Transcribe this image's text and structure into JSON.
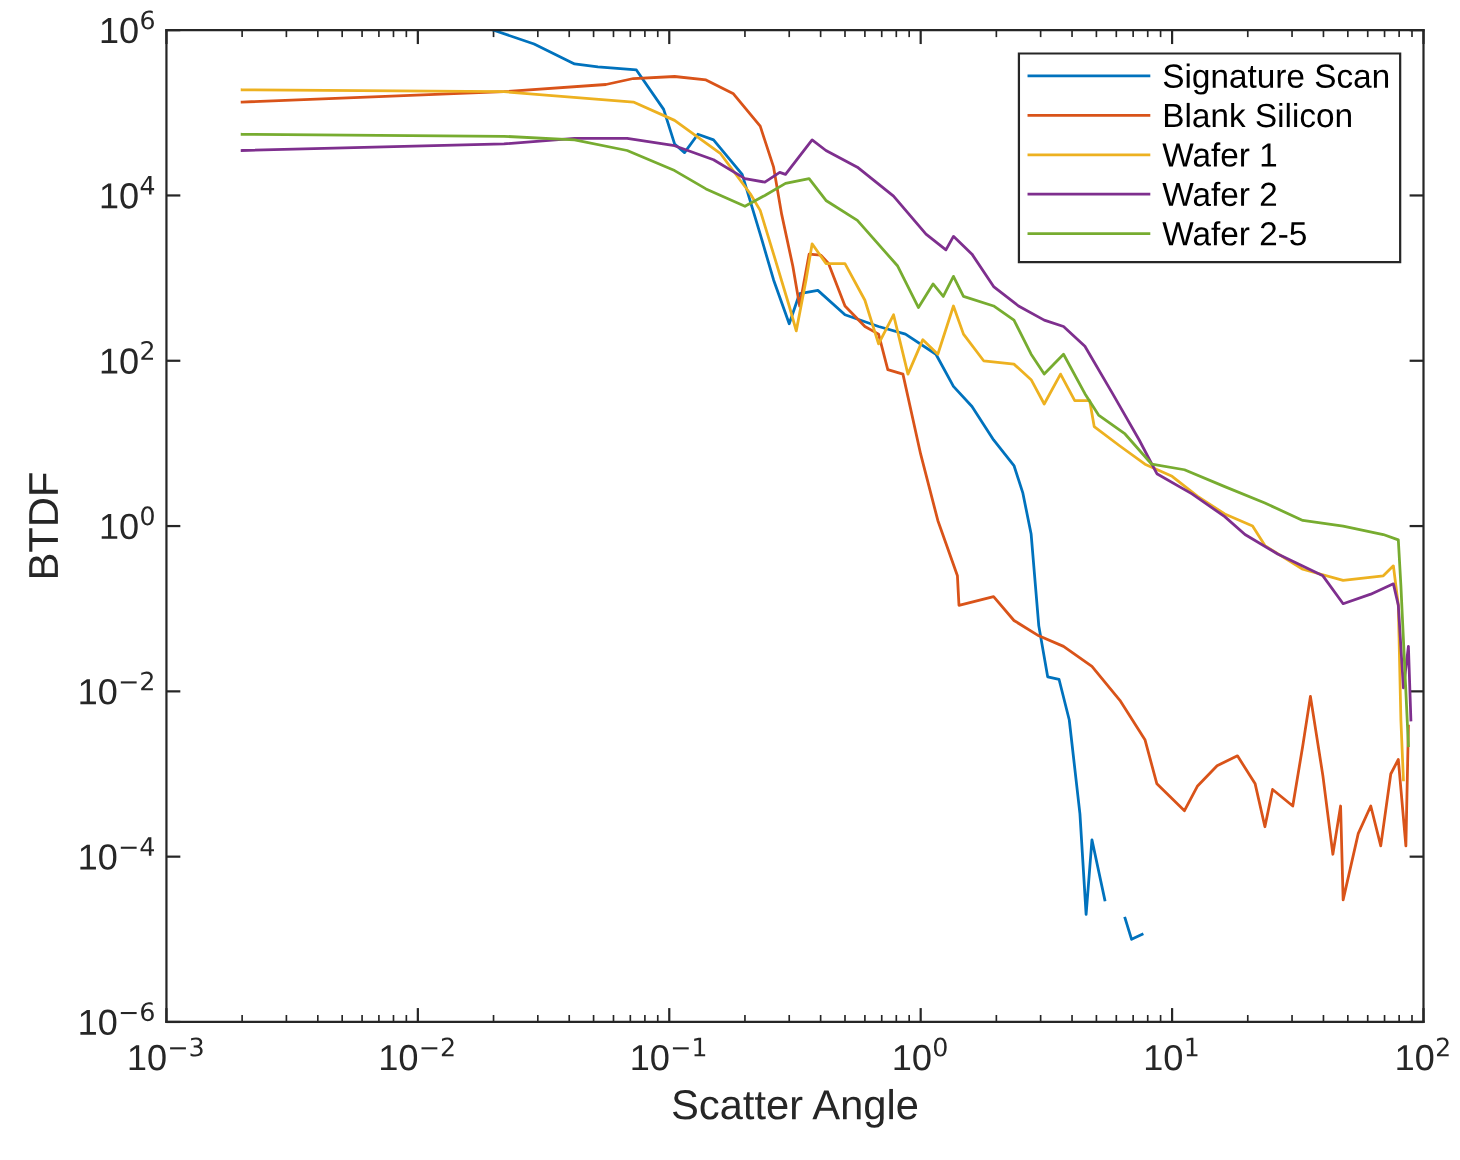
{
  "chart_data": {
    "type": "line",
    "xlabel": "Scatter Angle",
    "ylabel": "BTDF",
    "log": "xy",
    "grid": false,
    "legend": "top right",
    "line_style": "solid",
    "marker": "none",
    "xlim": [
      0.001,
      100
    ],
    "ylim": [
      1e-06,
      1000000.0
    ],
    "xticks": [
      {
        "value": 0.001,
        "label": "10$^{−3}$"
      },
      {
        "value": 0.01,
        "label": "10$^{−2}$"
      },
      {
        "value": 0.1,
        "label": "10$^{−1}$"
      },
      {
        "value": 1,
        "label": "10$^{0}$"
      },
      {
        "value": 10,
        "label": "10$^{1}$"
      },
      {
        "value": 100,
        "label": "10$^{2}$"
      }
    ],
    "yticks": [
      {
        "value": 1e-06,
        "label": "10$^{−6}$"
      },
      {
        "value": 0.0001,
        "label": "10$^{−4}$"
      },
      {
        "value": 0.01,
        "label": "10$^{−2}$"
      },
      {
        "value": 1,
        "label": "10$^{0}$"
      },
      {
        "value": 100,
        "label": "10$^{2}$"
      },
      {
        "value": 10000,
        "label": "10$^{4}$"
      },
      {
        "value": 1000000,
        "label": "10$^{6}$"
      }
    ],
    "series": [
      {
        "name": "Signature Scan",
        "color": "#0072bd",
        "x": [
          0.02,
          0.029,
          0.042,
          0.052,
          0.074,
          0.095,
          0.105,
          0.115,
          0.13,
          0.15,
          0.195,
          0.23,
          0.26,
          0.3,
          0.33,
          0.39,
          0.5,
          0.68,
          0.87,
          1.15,
          1.35,
          1.6,
          1.95,
          2.35,
          2.55,
          2.75,
          2.95,
          3.2,
          3.55,
          3.9,
          4.3,
          4.55,
          4.8,
          5.4,
          5.9,
          6.5,
          6.9,
          7.6
        ],
        "values": [
          1000000,
          680000,
          390000,
          360000,
          330000,
          110000,
          42000,
          33000,
          55000,
          47000,
          18000,
          3400,
          950,
          280,
          650,
          710,
          360,
          260,
          210,
          120,
          49,
          28,
          11,
          5.4,
          2.5,
          0.8,
          0.062,
          0.015,
          0.014,
          0.0045,
          0.00033,
          2e-05,
          0.00016,
          3e-05,
          null,
          1.8e-05,
          1e-05,
          1.15e-05
        ]
      },
      {
        "name": "Blank Silicon",
        "color": "#d95319",
        "x": [
          0.002,
          0.022,
          0.056,
          0.072,
          0.105,
          0.14,
          0.18,
          0.23,
          0.26,
          0.28,
          0.31,
          0.33,
          0.36,
          0.4,
          0.43,
          0.5,
          0.6,
          0.68,
          0.74,
          0.85,
          1.0,
          1.17,
          1.4,
          1.42,
          1.95,
          2.35,
          2.95,
          3.7,
          4.8,
          6.2,
          7.8,
          8.7,
          11.2,
          12.6,
          15.1,
          18.2,
          21.4,
          23.4,
          25.1,
          30.2,
          33.1,
          35.5,
          39.8,
          43.6,
          46.8,
          47.9,
          55.0,
          61.7,
          67.6,
          74.1,
          79.4,
          85.1,
          87.1
        ],
        "values": [
          135000,
          180000,
          220000,
          260000,
          275000,
          250000,
          170000,
          69000,
          22000,
          5900,
          1400,
          460,
          1950,
          1900,
          1500,
          460,
          260,
          210,
          78,
          69,
          7.4,
          1.17,
          0.25,
          0.11,
          0.14,
          0.072,
          0.047,
          0.035,
          0.02,
          0.0078,
          0.0026,
          0.00076,
          0.00036,
          0.00071,
          0.00126,
          0.00166,
          0.00076,
          0.00023,
          0.00065,
          0.00041,
          0.0022,
          0.0087,
          0.00095,
          0.000107,
          0.00041,
          3e-05,
          0.00019,
          0.00041,
          0.000135,
          0.001,
          0.0015,
          0.000135,
          0.0038
        ]
      },
      {
        "name": "Wafer 1",
        "color": "#edb120",
        "x": [
          0.002,
          0.022,
          0.072,
          0.105,
          0.16,
          0.21,
          0.23,
          0.26,
          0.3,
          0.32,
          0.35,
          0.37,
          0.42,
          0.5,
          0.6,
          0.68,
          0.78,
          0.89,
          1.02,
          1.17,
          1.35,
          1.48,
          1.78,
          2.35,
          2.75,
          3.1,
          3.6,
          4.1,
          4.7,
          4.9,
          6.2,
          7.8,
          10,
          12.6,
          16.2,
          20.9,
          23.4,
          33.1,
          47.9,
          69.2,
          75.9,
          79.4,
          81.3,
          83.2
        ],
        "values": [
          190000,
          180000,
          135000,
          81000,
          32000,
          10500,
          6600,
          1950,
          460,
          230,
          950,
          2600,
          1500,
          1500,
          540,
          160,
          360,
          69,
          180,
          120,
          460,
          210,
          100,
          91,
          59,
          30,
          69,
          33,
          33,
          16,
          9.3,
          5.6,
          4.0,
          2.3,
          1.4,
          1.0,
          0.58,
          0.3,
          0.22,
          0.25,
          0.33,
          0.11,
          0.0045,
          0.00085
        ]
      },
      {
        "name": "Wafer 2",
        "color": "#7e2f8e",
        "x": [
          0.002,
          0.022,
          0.042,
          0.068,
          0.105,
          0.15,
          0.2,
          0.24,
          0.275,
          0.29,
          0.37,
          0.42,
          0.56,
          0.78,
          1.05,
          1.26,
          1.35,
          1.6,
          1.95,
          2.45,
          3.1,
          3.7,
          4.5,
          5.8,
          7.4,
          8.7,
          12,
          16.2,
          19.5,
          26.3,
          39.8,
          47.9,
          61.7,
          75.9,
          79.4,
          83.2,
          87.1,
          89.1
        ],
        "values": [
          35000,
          42000,
          49000,
          49000,
          40000,
          27000,
          16000,
          14500,
          19000,
          18000,
          47000,
          35000,
          22000,
          9800,
          3400,
          2200,
          3200,
          1950,
          790,
          460,
          310,
          260,
          150,
          40,
          11,
          4.3,
          2.45,
          1.3,
          0.79,
          0.46,
          0.25,
          0.115,
          0.15,
          0.2,
          0.11,
          0.011,
          0.035,
          0.0045
        ]
      },
      {
        "name": "Wafer 2-5",
        "color": "#77ac30",
        "x": [
          0.002,
          0.022,
          0.042,
          0.068,
          0.105,
          0.14,
          0.2,
          0.24,
          0.29,
          0.36,
          0.42,
          0.56,
          0.81,
          0.98,
          1.12,
          1.23,
          1.35,
          1.48,
          1.95,
          2.35,
          2.75,
          3.1,
          3.7,
          4.5,
          5.1,
          6.5,
          8.3,
          11.2,
          16.2,
          23.4,
          33.1,
          47.9,
          69.2,
          79.4,
          81.3,
          87.1
        ],
        "values": [
          55000,
          52000,
          47000,
          35000,
          20000,
          12000,
          7400,
          10000,
          14000,
          16000,
          8700,
          5000,
          1400,
          440,
          850,
          600,
          1050,
          600,
          460,
          310,
          120,
          69,
          120,
          40,
          22,
          13,
          5.6,
          4.8,
          3.0,
          1.9,
          1.17,
          1.0,
          0.79,
          0.68,
          0.19,
          0.0022
        ]
      }
    ]
  }
}
